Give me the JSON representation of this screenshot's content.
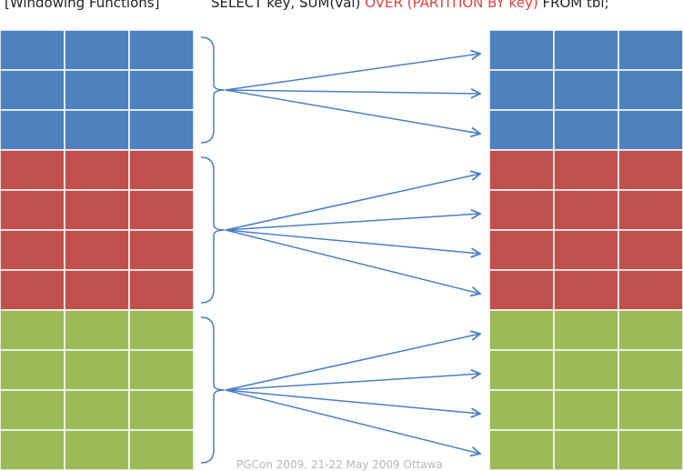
{
  "header": {
    "label": "[Windowing Functions]",
    "query_prefix": "SELECT key, SUM(val) ",
    "query_over": "OVER (PARTITION BY key)",
    "query_suffix": " FROM tbl;"
  },
  "colors": {
    "blue": "#4f81bd",
    "red": "#c0504d",
    "green": "#9bbb59",
    "grid_line": "#ffffff",
    "arrow": "#4a7ec2",
    "brace": "#4a7ec2",
    "keyword": "#e8403b"
  },
  "partitions": [
    {
      "name": "blue",
      "color_key": "blue",
      "rows": 3
    },
    {
      "name": "red",
      "color_key": "red",
      "rows": 4
    },
    {
      "name": "green",
      "color_key": "green",
      "rows": 4
    }
  ],
  "columns": 3,
  "footer": "PGCon 2009, 21-22 May 2009 Ottawa"
}
